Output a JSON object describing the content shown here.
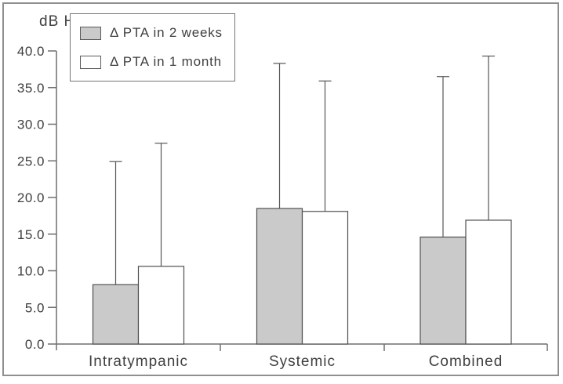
{
  "figure": {
    "y_axis_unit_label": "dB HL"
  },
  "chart_data": {
    "type": "bar",
    "title": "",
    "xlabel": "",
    "ylabel": "dB HL",
    "categories": [
      "Intratympanic",
      "Systemic",
      "Combined"
    ],
    "series": [
      {
        "name": "Δ PTA in 2 weeks",
        "fill": "#cacaca",
        "values": [
          8.1,
          18.5,
          14.6
        ],
        "error_upper": [
          16.8,
          19.8,
          21.9
        ]
      },
      {
        "name": "Δ PTA in 1 month",
        "fill": "#ffffff",
        "values": [
          10.6,
          18.1,
          16.9
        ],
        "error_upper": [
          16.8,
          17.8,
          22.4
        ]
      }
    ],
    "ylim": [
      0,
      40
    ],
    "ytick_step": 5.0,
    "ytick_labels": [
      "0.0",
      "5.0",
      "10.0",
      "15.0",
      "20.0",
      "25.0",
      "30.0",
      "35.0",
      "40.0"
    ],
    "grid": false,
    "error_bars": "upper-only",
    "legend_position": "top-left"
  },
  "colors": {
    "text": "#3f3f3f",
    "axis": "#6f6f6f",
    "bar_stroke": "#4f4f4f",
    "error_line": "#565656",
    "series1_fill": "#cacaca",
    "series2_fill": "#ffffff",
    "legend_border": "#757575",
    "figure_border": "#8f8f8f",
    "background": "#ffffff"
  }
}
